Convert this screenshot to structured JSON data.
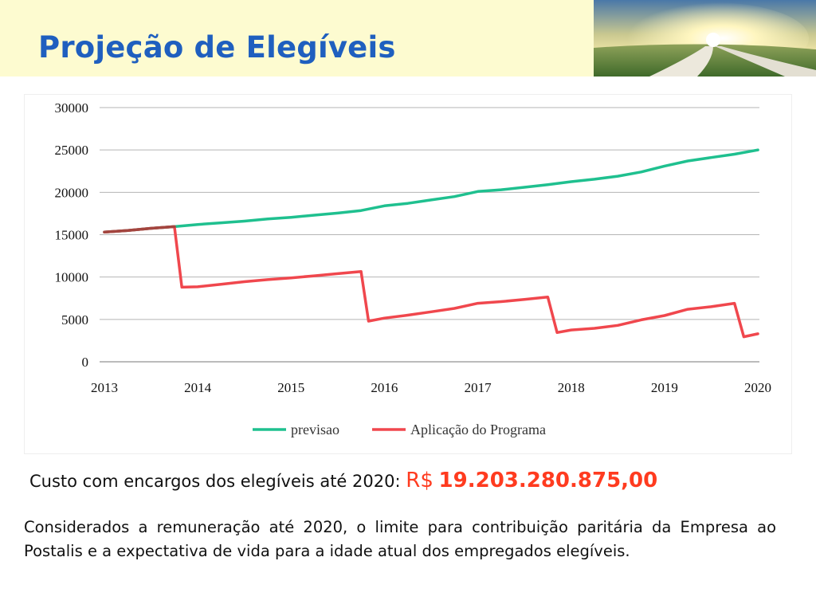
{
  "slide": {
    "title": "Projeção de Elegíveis",
    "cost_label": "Custo com encargos dos elegíveis até 2020:",
    "cost_currency": "R$",
    "cost_value": "19.203.280.875,00",
    "note": "Considerados a remuneração até 2020, o limite para contribuição paritária da Empresa ao Postalis e a expectativa de vida para a idade atual dos empregados elegíveis."
  },
  "photo": {
    "icon": "landscape-road-sunrise-photo",
    "colors": {
      "sky_top": "#4a78a8",
      "sun": "#fff6c0",
      "field": "#5f8a3a",
      "road": "#e8e4d8"
    }
  },
  "chart_data": {
    "type": "line",
    "title": "",
    "xlabel": "",
    "ylabel": "",
    "xlim": [
      2013,
      2020
    ],
    "ylim": [
      0,
      30000
    ],
    "xticks": [
      "2013",
      "2014",
      "2015",
      "2016",
      "2017",
      "2018",
      "2019",
      "2020"
    ],
    "yticks": [
      "0",
      "5000",
      "10000",
      "15000",
      "20000",
      "25000",
      "30000"
    ],
    "grid": "horizontal",
    "legend": "bottom",
    "series": [
      {
        "name": "previsao",
        "color": "#1fc08f",
        "points": [
          [
            2013.0,
            15300
          ],
          [
            2013.25,
            15500
          ],
          [
            2013.5,
            15750
          ],
          [
            2013.75,
            15950
          ],
          [
            2014.0,
            16200
          ],
          [
            2014.25,
            16400
          ],
          [
            2014.5,
            16600
          ],
          [
            2014.75,
            16850
          ],
          [
            2015.0,
            17050
          ],
          [
            2015.25,
            17300
          ],
          [
            2015.5,
            17550
          ],
          [
            2015.75,
            17850
          ],
          [
            2016.0,
            18400
          ],
          [
            2016.25,
            18700
          ],
          [
            2016.5,
            19100
          ],
          [
            2016.75,
            19500
          ],
          [
            2017.0,
            20100
          ],
          [
            2017.25,
            20300
          ],
          [
            2017.5,
            20600
          ],
          [
            2017.75,
            20900
          ],
          [
            2018.0,
            21250
          ],
          [
            2018.25,
            21550
          ],
          [
            2018.5,
            21900
          ],
          [
            2018.75,
            22400
          ],
          [
            2019.0,
            23100
          ],
          [
            2019.25,
            23700
          ],
          [
            2019.5,
            24100
          ],
          [
            2019.75,
            24500
          ],
          [
            2020.0,
            25000
          ]
        ]
      },
      {
        "name": "Aplicação do Programa",
        "color": "#f0474d",
        "overlap_color": "#a3453f",
        "points": [
          [
            2013.0,
            15300
          ],
          [
            2013.25,
            15500
          ],
          [
            2013.5,
            15750
          ],
          [
            2013.75,
            15950
          ],
          [
            2013.83,
            8800
          ],
          [
            2014.0,
            8850
          ],
          [
            2014.25,
            9150
          ],
          [
            2014.5,
            9450
          ],
          [
            2014.75,
            9700
          ],
          [
            2015.0,
            9900
          ],
          [
            2015.25,
            10150
          ],
          [
            2015.5,
            10400
          ],
          [
            2015.75,
            10650
          ],
          [
            2015.83,
            4800
          ],
          [
            2016.0,
            5150
          ],
          [
            2016.25,
            5500
          ],
          [
            2016.5,
            5900
          ],
          [
            2016.75,
            6300
          ],
          [
            2017.0,
            6900
          ],
          [
            2017.25,
            7100
          ],
          [
            2017.5,
            7350
          ],
          [
            2017.75,
            7650
          ],
          [
            2017.85,
            3450
          ],
          [
            2018.0,
            3750
          ],
          [
            2018.25,
            3950
          ],
          [
            2018.5,
            4300
          ],
          [
            2018.75,
            4950
          ],
          [
            2019.0,
            5450
          ],
          [
            2019.25,
            6200
          ],
          [
            2019.5,
            6500
          ],
          [
            2019.75,
            6900
          ],
          [
            2019.85,
            2950
          ],
          [
            2020.0,
            3300
          ]
        ]
      }
    ]
  }
}
